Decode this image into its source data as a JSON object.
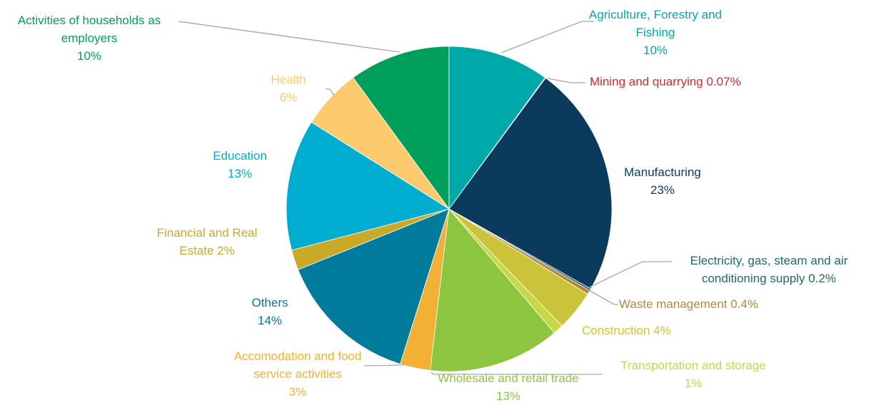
{
  "chart_data": {
    "type": "pie",
    "categories": [
      "Agriculture, Forestry and Fishing",
      "Mining and quarrying",
      "Manufacturing",
      "Electricity, gas, steam and air conditioning supply",
      "Waste management",
      "Construction",
      "Transportation and storage",
      "Wholesale and retail trade",
      "Accomodation and food service activities",
      "Others",
      "Financial and Real Estate",
      "Education",
      "Health",
      "Activities of households as employers"
    ],
    "values": [
      10,
      0.07,
      23,
      0.2,
      0.4,
      4,
      1,
      13,
      3,
      14,
      2,
      13,
      6,
      10
    ],
    "value_labels": [
      "10%",
      "0.07%",
      "23%",
      "0.2%",
      "0.4%",
      "4%",
      "1%",
      "13%",
      "3%",
      "14%",
      "2%",
      "13%",
      "6%",
      "10%"
    ],
    "colors": [
      "#00a9a9",
      "#d9262f",
      "#0a3a5c",
      "#1f6a6a",
      "#b5873a",
      "#cbc43a",
      "#c6d843",
      "#8cc63f",
      "#f2b134",
      "#007b9c",
      "#c9a928",
      "#00acd0",
      "#fdcb6e",
      "#00a05a"
    ]
  }
}
